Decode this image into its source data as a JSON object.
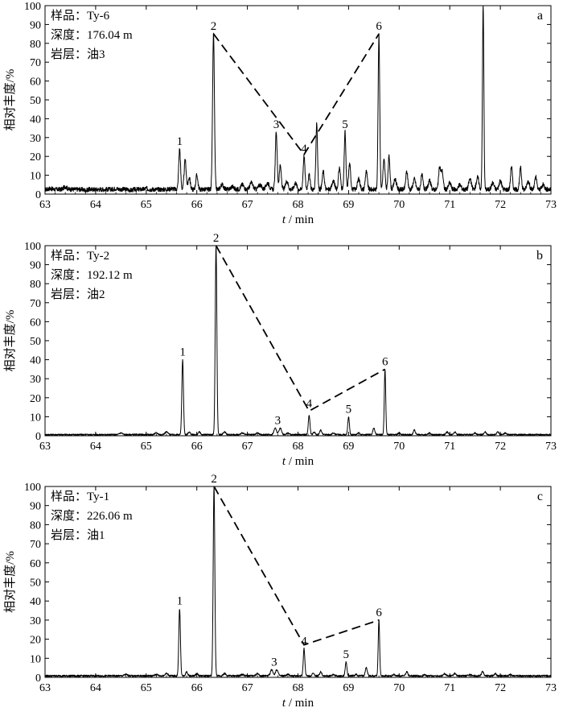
{
  "chart_data": [
    {
      "type": "line",
      "panel_letter": "a",
      "info": [
        "样品：Ty-6",
        "深度：176.04 m",
        "岩层：油3"
      ],
      "xlabel_italic": "t",
      "xlabel_rest": " / min",
      "ylabel": "相对丰度/%",
      "xlim": [
        63,
        73
      ],
      "ylim": [
        0,
        100
      ],
      "x_ticks": [
        63,
        64,
        65,
        66,
        67,
        68,
        69,
        70,
        71,
        72,
        73
      ],
      "y_ticks": [
        0,
        10,
        20,
        30,
        40,
        50,
        60,
        70,
        80,
        90,
        100
      ],
      "baseline": 2.5,
      "noise": 1.2,
      "grass": [
        [
          63.1,
          3
        ],
        [
          63.4,
          4
        ],
        [
          63.8,
          2
        ],
        [
          64.1,
          2.5
        ],
        [
          64.4,
          3
        ],
        [
          64.7,
          2
        ],
        [
          65.0,
          3
        ],
        [
          65.3,
          2.5
        ],
        [
          65.5,
          3
        ]
      ],
      "peaks": [
        [
          65.66,
          24,
          0.018
        ],
        [
          65.77,
          18,
          0.02
        ],
        [
          65.85,
          9,
          0.02
        ],
        [
          66.0,
          10,
          0.02
        ],
        [
          66.33,
          85,
          0.018
        ],
        [
          66.5,
          5,
          0.03
        ],
        [
          66.7,
          4,
          0.03
        ],
        [
          66.9,
          5,
          0.03
        ],
        [
          67.08,
          6,
          0.03
        ],
        [
          67.25,
          5,
          0.03
        ],
        [
          67.4,
          6,
          0.03
        ],
        [
          67.57,
          33,
          0.018
        ],
        [
          67.65,
          15,
          0.02
        ],
        [
          67.78,
          7,
          0.025
        ],
        [
          67.95,
          6,
          0.025
        ],
        [
          68.12,
          20,
          0.018
        ],
        [
          68.22,
          10,
          0.02
        ],
        [
          68.37,
          38,
          0.016
        ],
        [
          68.5,
          12,
          0.02
        ],
        [
          68.7,
          7,
          0.025
        ],
        [
          68.82,
          14,
          0.02
        ],
        [
          68.93,
          33,
          0.016
        ],
        [
          69.02,
          16,
          0.02
        ],
        [
          69.2,
          8,
          0.025
        ],
        [
          69.35,
          12,
          0.02
        ],
        [
          69.6,
          84,
          0.016
        ],
        [
          69.7,
          18,
          0.02
        ],
        [
          69.8,
          20,
          0.018
        ],
        [
          69.92,
          8,
          0.025
        ],
        [
          70.15,
          12,
          0.02
        ],
        [
          70.3,
          8,
          0.025
        ],
        [
          70.45,
          10,
          0.02
        ],
        [
          70.6,
          7,
          0.025
        ],
        [
          70.8,
          14,
          0.02
        ],
        [
          70.85,
          12,
          0.02
        ],
        [
          71.0,
          6,
          0.025
        ],
        [
          71.2,
          5,
          0.025
        ],
        [
          71.4,
          8,
          0.025
        ],
        [
          71.55,
          9,
          0.025
        ],
        [
          71.66,
          100,
          0.014
        ],
        [
          71.85,
          6,
          0.025
        ],
        [
          72.0,
          7,
          0.025
        ],
        [
          72.22,
          15,
          0.018
        ],
        [
          72.4,
          14,
          0.018
        ],
        [
          72.55,
          7,
          0.025
        ],
        [
          72.7,
          9,
          0.02
        ],
        [
          72.85,
          5,
          0.025
        ]
      ],
      "trend_points": [
        [
          66.33,
          85
        ],
        [
          68.12,
          21
        ],
        [
          69.6,
          85
        ]
      ],
      "labels": [
        {
          "text": "1",
          "x": 65.66,
          "y": 24
        },
        {
          "text": "2",
          "x": 66.33,
          "y": 85
        },
        {
          "text": "3",
          "x": 67.57,
          "y": 33
        },
        {
          "text": "4",
          "x": 68.12,
          "y": 20
        },
        {
          "text": "5",
          "x": 68.93,
          "y": 33
        },
        {
          "text": "6",
          "x": 69.6,
          "y": 85
        }
      ]
    },
    {
      "type": "line",
      "panel_letter": "b",
      "info": [
        "样品：Ty-2",
        "深度：192.12 m",
        "岩层：油2"
      ],
      "xlabel_italic": "t",
      "xlabel_rest": " / min",
      "ylabel": "相对丰度/%",
      "xlim": [
        63,
        73
      ],
      "ylim": [
        0,
        100
      ],
      "x_ticks": [
        63,
        64,
        65,
        66,
        67,
        68,
        69,
        70,
        71,
        72,
        73
      ],
      "y_ticks": [
        0,
        10,
        20,
        30,
        40,
        50,
        60,
        70,
        80,
        90,
        100
      ],
      "baseline": 0.6,
      "noise": 0.35,
      "grass": [
        [
          64.5,
          1.5
        ],
        [
          65.2,
          1.5
        ],
        [
          65.4,
          2
        ]
      ],
      "peaks": [
        [
          65.72,
          40,
          0.016
        ],
        [
          65.85,
          2,
          0.02
        ],
        [
          66.05,
          2,
          0.02
        ],
        [
          66.38,
          100,
          0.016
        ],
        [
          66.55,
          2,
          0.025
        ],
        [
          66.9,
          1.5,
          0.025
        ],
        [
          67.2,
          1.5,
          0.025
        ],
        [
          67.55,
          4,
          0.025
        ],
        [
          67.65,
          4,
          0.025
        ],
        [
          67.8,
          1.5,
          0.025
        ],
        [
          68.22,
          11,
          0.016
        ],
        [
          68.32,
          2,
          0.02
        ],
        [
          68.45,
          3,
          0.02
        ],
        [
          68.7,
          1.5,
          0.02
        ],
        [
          69.0,
          10,
          0.016
        ],
        [
          69.2,
          1.5,
          0.02
        ],
        [
          69.5,
          4,
          0.02
        ],
        [
          69.72,
          35,
          0.014
        ],
        [
          70.0,
          1.5,
          0.02
        ],
        [
          70.3,
          3,
          0.02
        ],
        [
          70.6,
          1.5,
          0.02
        ],
        [
          70.95,
          2,
          0.02
        ],
        [
          71.1,
          2,
          0.02
        ],
        [
          71.5,
          1.5,
          0.02
        ],
        [
          71.7,
          2,
          0.02
        ],
        [
          71.95,
          2,
          0.02
        ],
        [
          72.1,
          1.5,
          0.02
        ]
      ],
      "trend_points": [
        [
          66.38,
          100
        ],
        [
          68.22,
          13
        ],
        [
          69.72,
          35
        ]
      ],
      "labels": [
        {
          "text": "1",
          "x": 65.72,
          "y": 40
        },
        {
          "text": "2",
          "x": 66.38,
          "y": 100
        },
        {
          "text": "3",
          "x": 67.6,
          "y": 4
        },
        {
          "text": "4",
          "x": 68.22,
          "y": 13
        },
        {
          "text": "5",
          "x": 69.0,
          "y": 10
        },
        {
          "text": "6",
          "x": 69.72,
          "y": 35
        }
      ]
    },
    {
      "type": "line",
      "panel_letter": "c",
      "info": [
        "样品：Ty-1",
        "深度：226.06 m",
        "岩层：油1"
      ],
      "xlabel_italic": "t",
      "xlabel_rest": " / min",
      "ylabel": "相对丰度/%",
      "xlim": [
        63,
        73
      ],
      "ylim": [
        0,
        100
      ],
      "x_ticks": [
        63,
        64,
        65,
        66,
        67,
        68,
        69,
        70,
        71,
        72,
        73
      ],
      "y_ticks": [
        0,
        10,
        20,
        30,
        40,
        50,
        60,
        70,
        80,
        90,
        100
      ],
      "baseline": 0.8,
      "noise": 0.45,
      "grass": [
        [
          64.6,
          1.5
        ],
        [
          65.2,
          1.5
        ],
        [
          65.4,
          2
        ]
      ],
      "peaks": [
        [
          65.66,
          36,
          0.016
        ],
        [
          65.8,
          3,
          0.02
        ],
        [
          66.0,
          2,
          0.02
        ],
        [
          66.34,
          100,
          0.016
        ],
        [
          66.55,
          2,
          0.025
        ],
        [
          66.9,
          1.5,
          0.025
        ],
        [
          67.2,
          2,
          0.025
        ],
        [
          67.48,
          4,
          0.025
        ],
        [
          67.58,
          4,
          0.025
        ],
        [
          67.8,
          1.5,
          0.025
        ],
        [
          68.12,
          15,
          0.016
        ],
        [
          68.3,
          2,
          0.02
        ],
        [
          68.45,
          3,
          0.02
        ],
        [
          68.7,
          1.5,
          0.02
        ],
        [
          68.95,
          8,
          0.016
        ],
        [
          69.15,
          1.5,
          0.02
        ],
        [
          69.35,
          5,
          0.02
        ],
        [
          69.6,
          30,
          0.014
        ],
        [
          69.9,
          1.5,
          0.02
        ],
        [
          70.15,
          3,
          0.02
        ],
        [
          70.5,
          1.5,
          0.02
        ],
        [
          70.9,
          2,
          0.02
        ],
        [
          71.1,
          2,
          0.02
        ],
        [
          71.4,
          1.5,
          0.02
        ],
        [
          71.65,
          3,
          0.02
        ],
        [
          71.9,
          2,
          0.02
        ],
        [
          72.2,
          1.5,
          0.02
        ]
      ],
      "trend_points": [
        [
          66.34,
          100
        ],
        [
          68.12,
          17
        ],
        [
          69.6,
          30
        ]
      ],
      "labels": [
        {
          "text": "1",
          "x": 65.66,
          "y": 36
        },
        {
          "text": "2",
          "x": 66.34,
          "y": 100
        },
        {
          "text": "3",
          "x": 67.53,
          "y": 4
        },
        {
          "text": "4",
          "x": 68.12,
          "y": 15
        },
        {
          "text": "5",
          "x": 68.95,
          "y": 8
        },
        {
          "text": "6",
          "x": 69.6,
          "y": 30
        }
      ]
    }
  ]
}
